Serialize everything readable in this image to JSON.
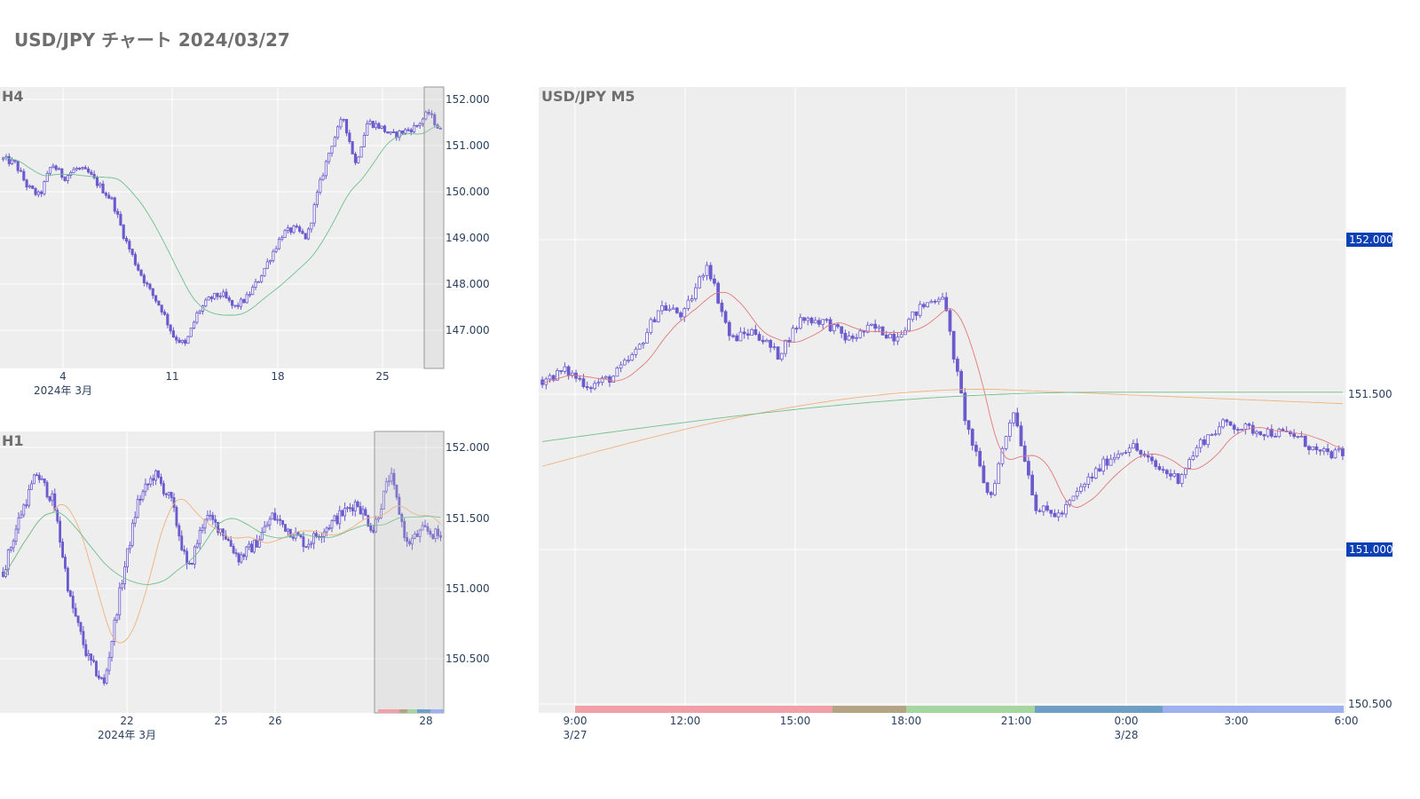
{
  "title": "USD/JPY チャート 2024/03/27",
  "colors": {
    "candle": "#6a5acd",
    "ma_short": "#e07a7a",
    "ma_mid": "#6fbf8f",
    "ma_long": "#f0b27a",
    "tag": "#0d3fb5",
    "sessions": [
      "#f2a0a8",
      "#b5a483",
      "#a6d6a0",
      "#6f9fc6",
      "#9fb0f0"
    ]
  },
  "chart_data": [
    {
      "id": "h4",
      "type": "candlestick",
      "title": "H4",
      "y_ticks": [
        "152.000",
        "151.000",
        "150.000",
        "149.000",
        "148.000",
        "147.000"
      ],
      "ylim": [
        146.2,
        152.25
      ],
      "x_ticks": [
        {
          "label": "4",
          "sub": "2024年 3月"
        },
        {
          "label": "11",
          "sub": ""
        },
        {
          "label": "18",
          "sub": ""
        },
        {
          "label": "25",
          "sub": ""
        }
      ],
      "close_path": [
        150.7,
        150.6,
        150.1,
        149.9,
        150.6,
        150.3,
        150.5,
        150.4,
        150.1,
        149.8,
        149.0,
        148.4,
        147.9,
        147.5,
        146.9,
        146.7,
        147.4,
        147.7,
        147.8,
        147.5,
        147.7,
        148.1,
        148.6,
        149.1,
        149.2,
        149.0,
        150.1,
        151.0,
        151.6,
        150.6,
        151.5,
        151.4,
        151.2,
        151.3,
        151.4,
        151.7,
        151.3
      ]
    },
    {
      "id": "h1",
      "type": "candlestick",
      "title": "H1",
      "y_ticks": [
        "152.000",
        "151.500",
        "151.000",
        "150.500"
      ],
      "ylim": [
        150.1,
        152.1
      ],
      "x_ticks": [
        {
          "label": "22",
          "sub": "2024年 3月"
        },
        {
          "label": "25",
          "sub": ""
        },
        {
          "label": "26",
          "sub": ""
        },
        {
          "label": "28",
          "sub": ""
        }
      ],
      "close_path": [
        151.1,
        151.5,
        151.8,
        151.6,
        150.9,
        150.5,
        150.3,
        151.0,
        151.6,
        151.8,
        151.6,
        151.1,
        151.5,
        151.4,
        151.2,
        151.3,
        151.5,
        151.4,
        151.3,
        151.4,
        151.5,
        151.6,
        151.4,
        151.8,
        151.3,
        151.4,
        151.35
      ]
    },
    {
      "id": "m5",
      "type": "candlestick",
      "title": "USD/JPY M5",
      "y_ticks": [
        "152.000",
        "151.500",
        "151.000",
        "150.500"
      ],
      "ylim": [
        150.46,
        152.49
      ],
      "price_tags": [
        "152.000",
        "151.000"
      ],
      "x_ticks": [
        {
          "label": "9:00",
          "sub": "3/27"
        },
        {
          "label": "12:00",
          "sub": ""
        },
        {
          "label": "15:00",
          "sub": ""
        },
        {
          "label": "18:00",
          "sub": ""
        },
        {
          "label": "21:00",
          "sub": ""
        },
        {
          "label": "0:00",
          "sub": "3/28"
        },
        {
          "label": "3:00",
          "sub": ""
        },
        {
          "label": "6:00",
          "sub": ""
        }
      ],
      "close_path": [
        151.54,
        151.57,
        151.52,
        151.55,
        151.63,
        151.78,
        151.75,
        151.92,
        151.67,
        151.7,
        151.62,
        151.74,
        151.73,
        151.67,
        151.71,
        151.68,
        151.77,
        151.82,
        151.4,
        151.15,
        151.45,
        151.12,
        151.1,
        151.2,
        151.28,
        151.33,
        151.26,
        151.22,
        151.34,
        151.4,
        151.38,
        151.37,
        151.36,
        151.3,
        151.3
      ]
    }
  ]
}
